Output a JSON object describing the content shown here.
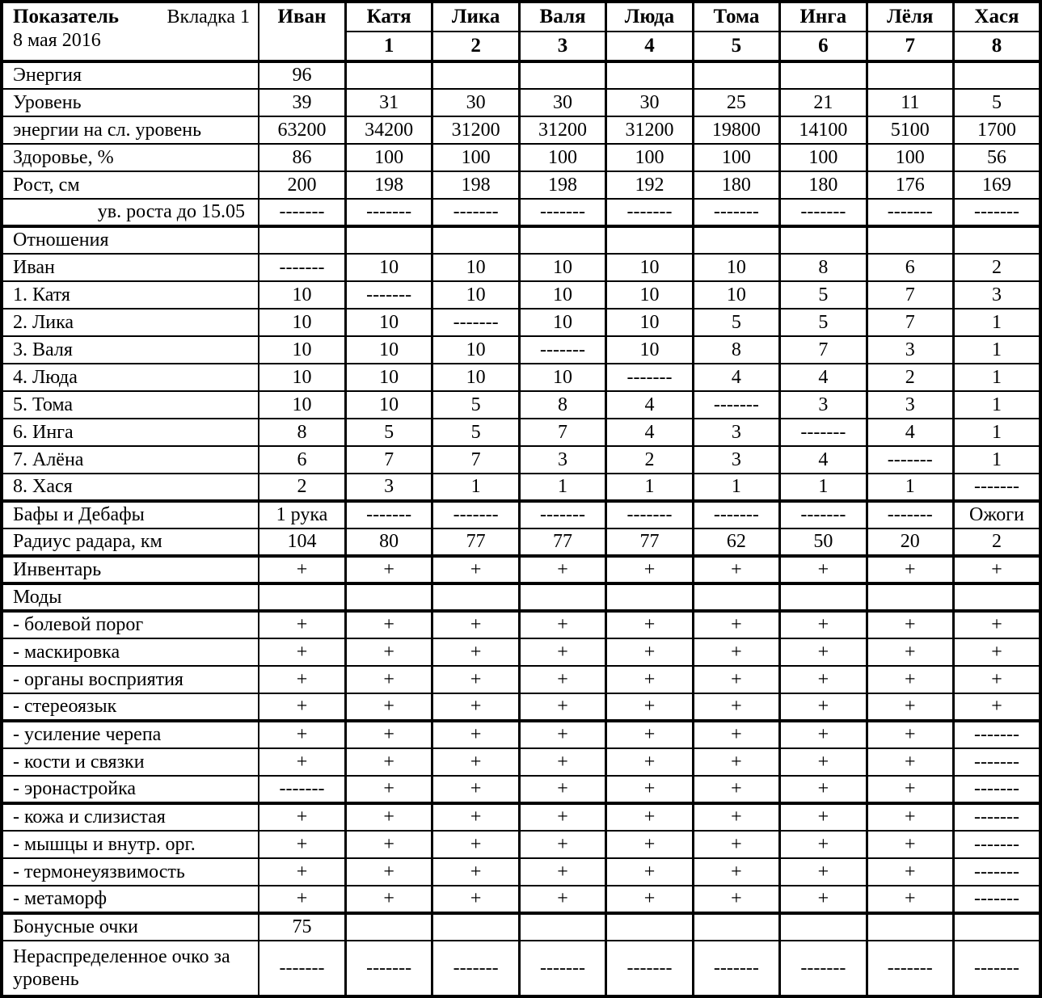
{
  "table": {
    "header": {
      "title": "Показатель",
      "tab": "Вкладка 1",
      "date": "8 мая 2016",
      "columns": [
        {
          "name": "Иван",
          "number": ""
        },
        {
          "name": "Катя",
          "number": "1"
        },
        {
          "name": "Лика",
          "number": "2"
        },
        {
          "name": "Валя",
          "number": "3"
        },
        {
          "name": "Люда",
          "number": "4"
        },
        {
          "name": "Тома",
          "number": "5"
        },
        {
          "name": "Инга",
          "number": "6"
        },
        {
          "name": "Лёля",
          "number": "7"
        },
        {
          "name": "Хася",
          "number": "8"
        }
      ]
    },
    "rows": [
      {
        "label": "Энергия",
        "cells": [
          "96",
          "",
          "",
          "",
          "",
          "",
          "",
          "",
          ""
        ]
      },
      {
        "label": "Уровень",
        "cells": [
          "39",
          "31",
          "30",
          "30",
          "30",
          "25",
          "21",
          "11",
          "5"
        ]
      },
      {
        "label": "энергии на сл. уровень",
        "cells": [
          "63200",
          "34200",
          "31200",
          "31200",
          "31200",
          "19800",
          "14100",
          "5100",
          "1700"
        ]
      },
      {
        "label": "Здоровье, %",
        "cells": [
          "86",
          "100",
          "100",
          "100",
          "100",
          "100",
          "100",
          "100",
          "56"
        ]
      },
      {
        "label": "Рост, см",
        "cells": [
          "200",
          "198",
          "198",
          "198",
          "192",
          "180",
          "180",
          "176",
          "169"
        ]
      },
      {
        "label": "ув. роста до 15.05",
        "cells": [
          "-------",
          "-------",
          "-------",
          "-------",
          "-------",
          "-------",
          "-------",
          "-------",
          "-------"
        ],
        "thick": true,
        "rightLabel": true
      },
      {
        "label": "Отношения",
        "cells": [
          "",
          "",
          "",
          "",
          "",
          "",
          "",
          "",
          ""
        ]
      },
      {
        "label": "Иван",
        "cells": [
          "-------",
          "10",
          "10",
          "10",
          "10",
          "10",
          "8",
          "6",
          "2"
        ]
      },
      {
        "label": "1. Катя",
        "cells": [
          "10",
          "-------",
          "10",
          "10",
          "10",
          "10",
          "5",
          "7",
          "3"
        ]
      },
      {
        "label": "2. Лика",
        "cells": [
          "10",
          "10",
          "-------",
          "10",
          "10",
          "5",
          "5",
          "7",
          "1"
        ]
      },
      {
        "label": "3. Валя",
        "cells": [
          "10",
          "10",
          "10",
          "-------",
          "10",
          "8",
          "7",
          "3",
          "1"
        ]
      },
      {
        "label": "4. Люда",
        "cells": [
          "10",
          "10",
          "10",
          "10",
          "-------",
          "4",
          "4",
          "2",
          "1"
        ]
      },
      {
        "label": "5. Тома",
        "cells": [
          "10",
          "10",
          "5",
          "8",
          "4",
          "-------",
          "3",
          "3",
          "1"
        ]
      },
      {
        "label": "6. Инга",
        "cells": [
          "8",
          "5",
          "5",
          "7",
          "4",
          "3",
          "-------",
          "4",
          "1"
        ]
      },
      {
        "label": "7. Алёна",
        "cells": [
          "6",
          "7",
          "7",
          "3",
          "2",
          "3",
          "4",
          "-------",
          "1"
        ]
      },
      {
        "label": "8. Хася",
        "cells": [
          "2",
          "3",
          "1",
          "1",
          "1",
          "1",
          "1",
          "1",
          "-------"
        ],
        "thick": true
      },
      {
        "label": "Бафы и Дебафы",
        "cells": [
          "1 рука",
          "-------",
          "-------",
          "-------",
          "-------",
          "-------",
          "-------",
          "-------",
          "Ожоги"
        ]
      },
      {
        "label": "Радиус радара, км",
        "cells": [
          "104",
          "80",
          "77",
          "77",
          "77",
          "62",
          "50",
          "20",
          "2"
        ],
        "thick": true
      },
      {
        "label": "Инвентарь",
        "cells": [
          "+",
          "+",
          "+",
          "+",
          "+",
          "+",
          "+",
          "+",
          "+"
        ],
        "thick": true
      },
      {
        "label": "Моды",
        "cells": [
          "",
          "",
          "",
          "",
          "",
          "",
          "",
          "",
          ""
        ],
        "thick": true
      },
      {
        "label": "- болевой порог",
        "cells": [
          "+",
          "+",
          "+",
          "+",
          "+",
          "+",
          "+",
          "+",
          "+"
        ]
      },
      {
        "label": "- маскировка",
        "cells": [
          "+",
          "+",
          "+",
          "+",
          "+",
          "+",
          "+",
          "+",
          "+"
        ]
      },
      {
        "label": "- органы восприятия",
        "cells": [
          "+",
          "+",
          "+",
          "+",
          "+",
          "+",
          "+",
          "+",
          "+"
        ]
      },
      {
        "label": "- стереоязык",
        "cells": [
          "+",
          "+",
          "+",
          "+",
          "+",
          "+",
          "+",
          "+",
          "+"
        ],
        "thick": true
      },
      {
        "label": "- усиление черепа",
        "cells": [
          "+",
          "+",
          "+",
          "+",
          "+",
          "+",
          "+",
          "+",
          "-------"
        ]
      },
      {
        "label": "- кости и связки",
        "cells": [
          "+",
          "+",
          "+",
          "+",
          "+",
          "+",
          "+",
          "+",
          "-------"
        ]
      },
      {
        "label": "- эронастройка",
        "cells": [
          "-------",
          "+",
          "+",
          "+",
          "+",
          "+",
          "+",
          "+",
          "-------"
        ],
        "thick": true
      },
      {
        "label": "- кожа и слизистая",
        "cells": [
          "+",
          "+",
          "+",
          "+",
          "+",
          "+",
          "+",
          "+",
          "-------"
        ]
      },
      {
        "label": "- мышцы и внутр. орг.",
        "cells": [
          "+",
          "+",
          "+",
          "+",
          "+",
          "+",
          "+",
          "+",
          "-------"
        ]
      },
      {
        "label": "- термонеуязвимость",
        "cells": [
          "+",
          "+",
          "+",
          "+",
          "+",
          "+",
          "+",
          "+",
          "-------"
        ]
      },
      {
        "label": "- метаморф",
        "cells": [
          "+",
          "+",
          "+",
          "+",
          "+",
          "+",
          "+",
          "+",
          "-------"
        ],
        "thick": true
      },
      {
        "label": "Бонусные очки",
        "cells": [
          "75",
          "",
          "",
          "",
          "",
          "",
          "",
          "",
          ""
        ]
      },
      {
        "label": "Нераспределенное очко за уровень",
        "cells": [
          "-------",
          "-------",
          "-------",
          "-------",
          "-------",
          "-------",
          "-------",
          "-------",
          "-------"
        ],
        "tall": true
      }
    ]
  }
}
